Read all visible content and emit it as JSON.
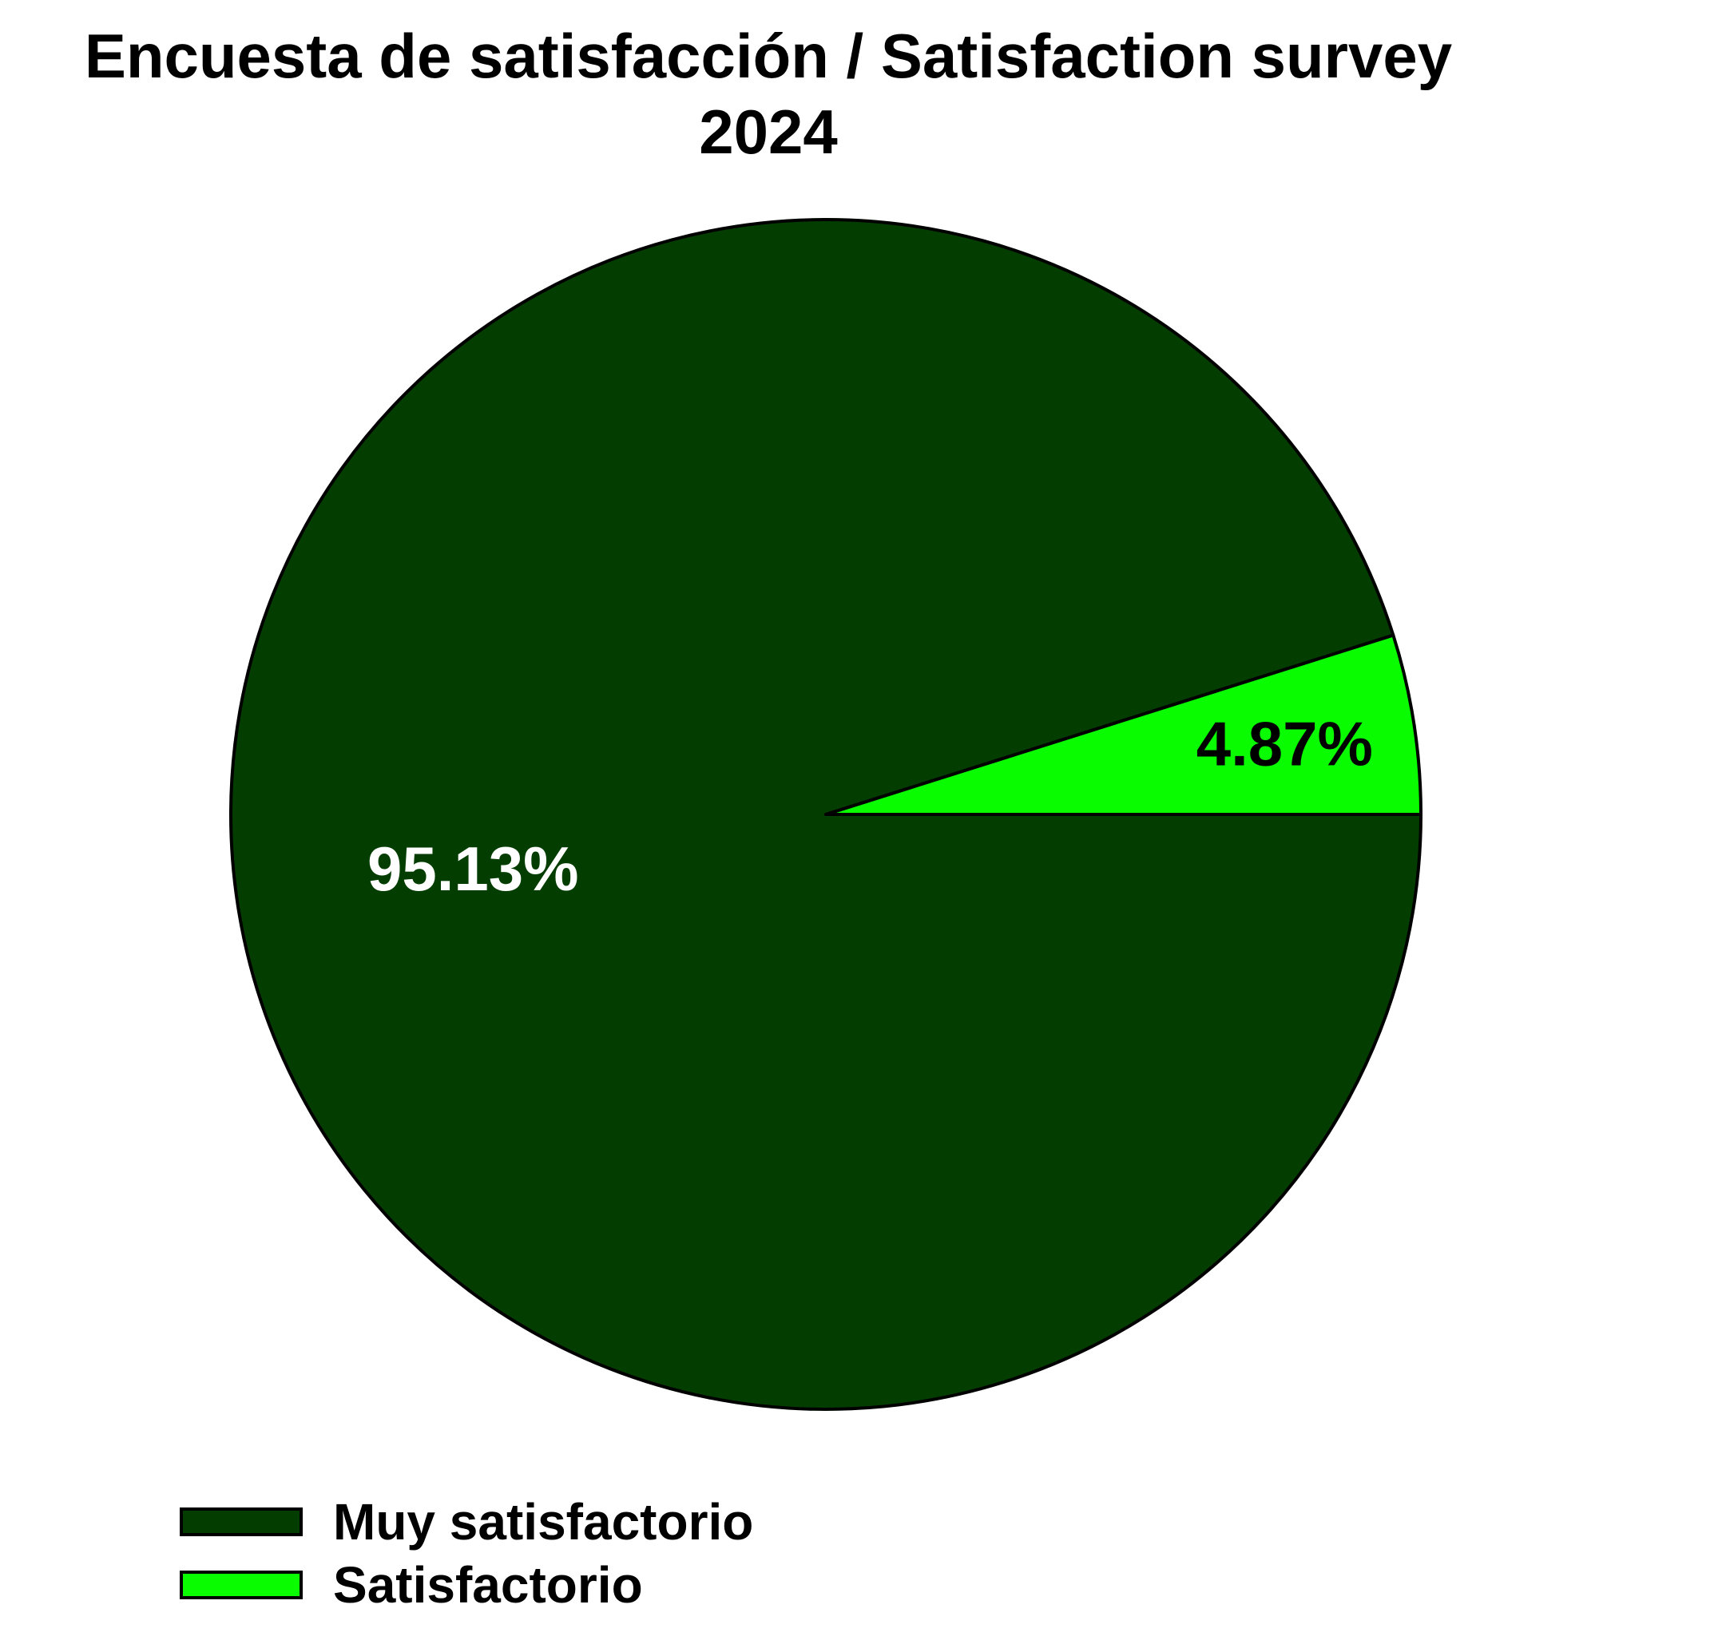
{
  "chart_data": {
    "type": "pie",
    "title": "Encuesta de satisfacción / Satisfaction survey 2024",
    "title_lines": [
      "Encuesta de satisfacción / Satisfaction survey",
      "2024"
    ],
    "slices": [
      {
        "name": "Muy satisfactorio",
        "value": 95.13,
        "label": "95.13%",
        "color": "#033d00",
        "label_color": "#ffffff"
      },
      {
        "name": "Satisfactorio",
        "value": 4.87,
        "label": "4.87%",
        "color": "#0afc00",
        "label_color": "#000000"
      }
    ],
    "start_angle_deg": 0,
    "direction": "clockwise",
    "legend_position": "bottom-left",
    "edge_color": "#000000"
  }
}
